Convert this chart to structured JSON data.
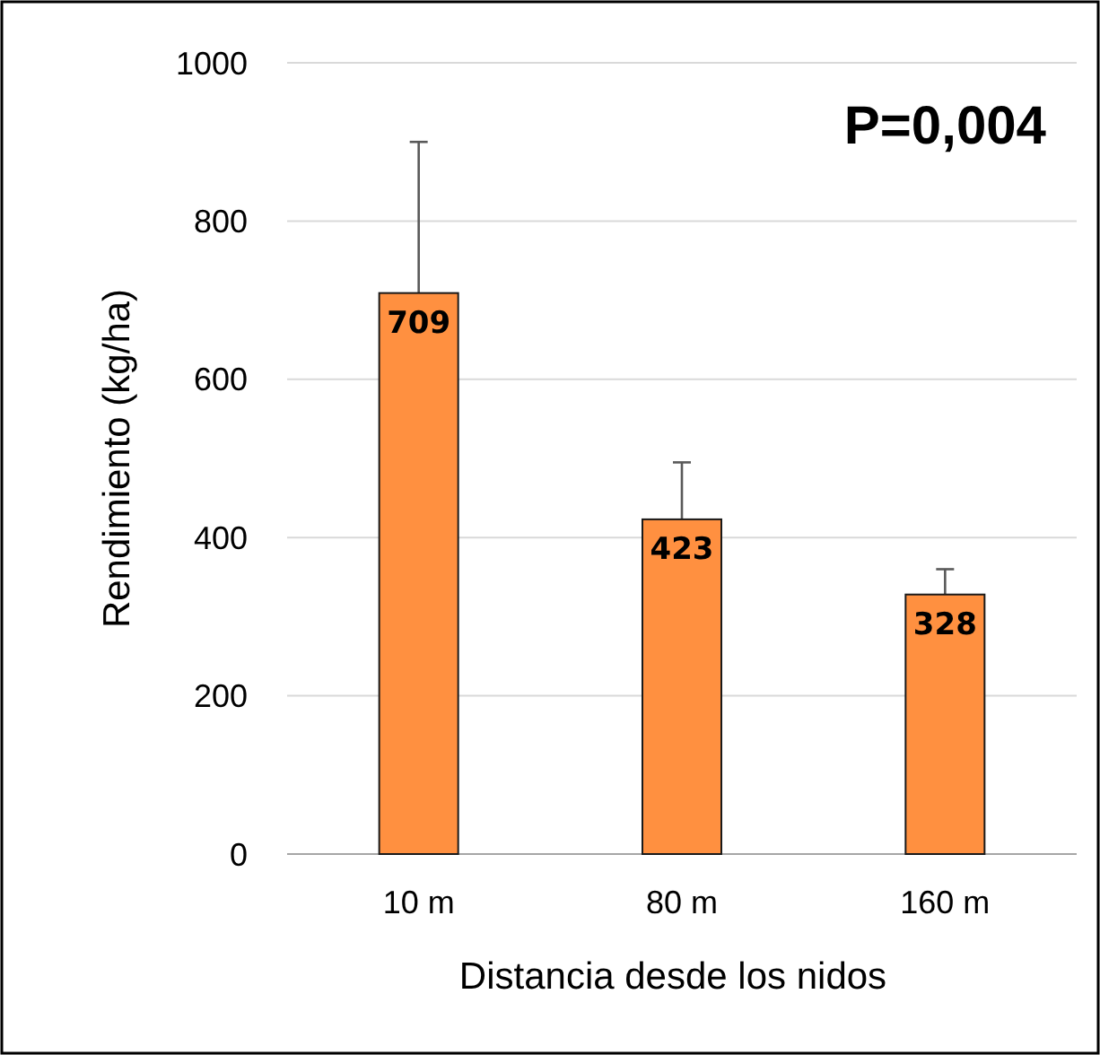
{
  "chart_data": {
    "type": "bar",
    "xlabel": "Distancia desde los nidos",
    "ylabel": "Rendimiento (kg/ha)",
    "categories": [
      "10 m",
      "80 m",
      "160 m"
    ],
    "values": [
      709,
      423,
      328
    ],
    "color": "#ff9040",
    "errors": [
      191,
      72,
      32
    ],
    "ylim": [
      0,
      1000
    ],
    "yticks": [
      0,
      200,
      400,
      600,
      800,
      1000
    ],
    "grid": "y",
    "data_labels": true,
    "annotations": [
      "P=0,004"
    ]
  }
}
